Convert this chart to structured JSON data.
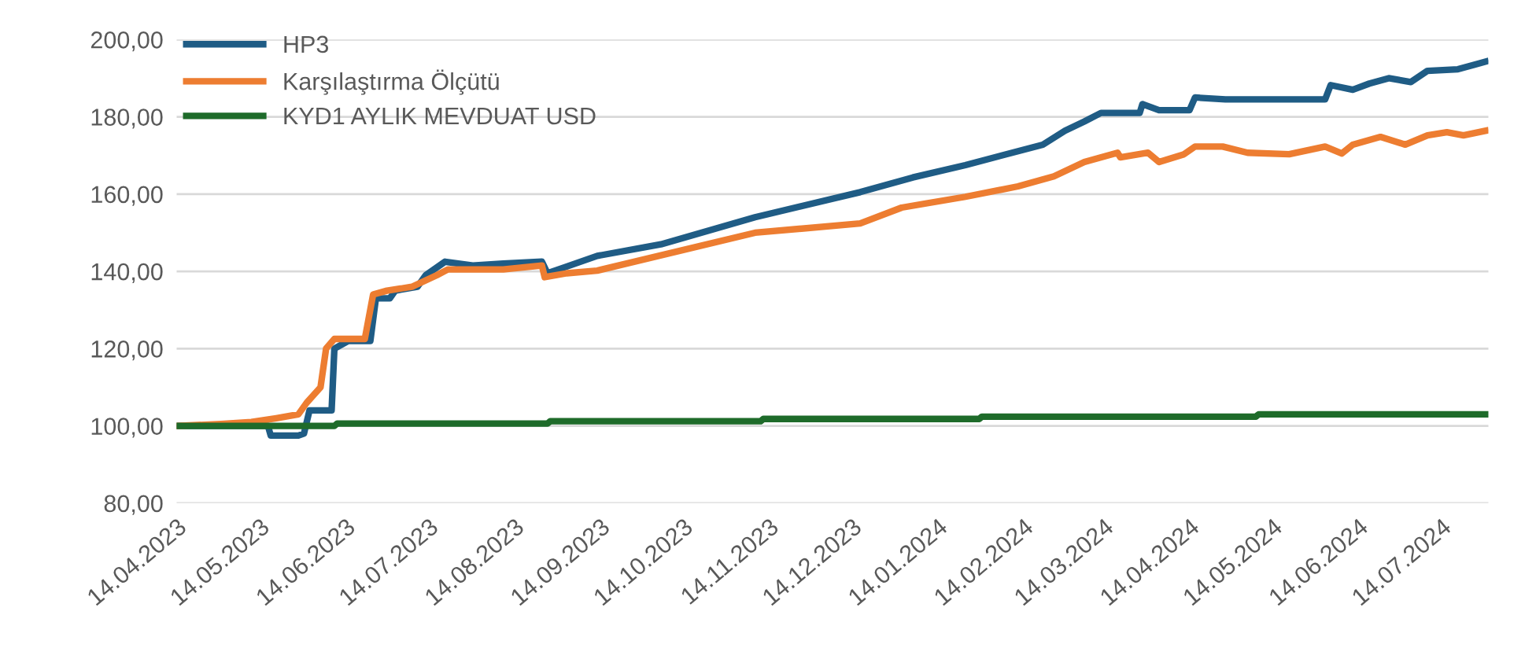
{
  "chart_data": {
    "type": "line",
    "legend": "top left",
    "grid": "y",
    "line_style": "solid",
    "marker": "none",
    "xlim": [
      "2023-04-14",
      "2024-07-31"
    ],
    "ylim": [
      80,
      200
    ],
    "yticks": [
      {
        "value": 80,
        "label": "80,00"
      },
      {
        "value": 100,
        "label": "100,00"
      },
      {
        "value": 120,
        "label": "120,00"
      },
      {
        "value": 140,
        "label": "140,00"
      },
      {
        "value": 160,
        "label": "160,00"
      },
      {
        "value": 180,
        "label": "180,00"
      },
      {
        "value": 200,
        "label": "200,00"
      }
    ],
    "xticks": [
      {
        "value": "2023-04-14",
        "label": "14.04.2023"
      },
      {
        "value": "2023-05-14",
        "label": "14.05.2023"
      },
      {
        "value": "2023-06-14",
        "label": "14.06.2023"
      },
      {
        "value": "2023-07-14",
        "label": "14.07.2023"
      },
      {
        "value": "2023-08-14",
        "label": "14.08.2023"
      },
      {
        "value": "2023-09-14",
        "label": "14.09.2023"
      },
      {
        "value": "2023-10-14",
        "label": "14.10.2023"
      },
      {
        "value": "2023-11-14",
        "label": "14.11.2023"
      },
      {
        "value": "2023-12-14",
        "label": "14.12.2023"
      },
      {
        "value": "2024-01-14",
        "label": "14.01.2024"
      },
      {
        "value": "2024-02-14",
        "label": "14.02.2024"
      },
      {
        "value": "2024-03-14",
        "label": "14.03.2024"
      },
      {
        "value": "2024-04-14",
        "label": "14.04.2024"
      },
      {
        "value": "2024-05-14",
        "label": "14.05.2024"
      },
      {
        "value": "2024-06-14",
        "label": "14.06.2024"
      },
      {
        "value": "2024-07-14",
        "label": "14.07.2024"
      }
    ],
    "series": [
      {
        "name": "HP3",
        "color": "#1f5c85",
        "x": [
          "2023-04-14",
          "2023-05-17",
          "2023-05-18",
          "2023-05-28",
          "2023-05-30",
          "2023-06-01",
          "2023-06-09",
          "2023-06-10",
          "2023-06-15",
          "2023-06-23",
          "2023-06-25",
          "2023-06-30",
          "2023-07-02",
          "2023-07-10",
          "2023-07-13",
          "2023-07-20",
          "2023-07-30",
          "2023-08-10",
          "2023-08-24",
          "2023-08-26",
          "2023-09-01",
          "2023-09-13",
          "2023-10-06",
          "2023-11-09",
          "2023-12-17",
          "2024-01-05",
          "2024-01-24",
          "2024-02-21",
          "2024-02-29",
          "2024-03-07",
          "2024-03-13",
          "2024-03-27",
          "2024-03-28",
          "2024-04-03",
          "2024-04-14",
          "2024-04-16",
          "2024-04-27",
          "2024-06-02",
          "2024-06-04",
          "2024-06-12",
          "2024-06-18",
          "2024-06-25",
          "2024-07-03",
          "2024-07-09",
          "2024-07-20",
          "2024-07-26",
          "2024-07-30"
        ],
        "values": [
          100,
          100,
          97.5,
          97.5,
          98,
          104,
          104,
          120,
          122,
          122,
          133,
          133,
          135,
          136,
          139,
          142.5,
          141.5,
          142,
          142.5,
          139.5,
          141,
          144,
          147,
          154,
          160.5,
          164.3,
          167.5,
          172.8,
          176.4,
          178.8,
          181,
          181,
          183.3,
          181.7,
          181.7,
          185,
          184.5,
          184.5,
          188.2,
          187,
          188.6,
          190,
          189,
          191.9,
          192.3,
          193.5,
          194.3
        ]
      },
      {
        "name": "Karşılaştırma Ölçütü",
        "color": "#ed7d31",
        "x": [
          "2023-04-14",
          "2023-04-30",
          "2023-05-11",
          "2023-05-20",
          "2023-05-28",
          "2023-05-31",
          "2023-06-05",
          "2023-06-07",
          "2023-06-10",
          "2023-06-21",
          "2023-06-24",
          "2023-06-29",
          "2023-07-08",
          "2023-07-17",
          "2023-07-21",
          "2023-08-10",
          "2023-08-24",
          "2023-08-25",
          "2023-09-02",
          "2023-09-13",
          "2023-11-09",
          "2023-12-17",
          "2024-01-01",
          "2024-01-24",
          "2024-02-12",
          "2024-02-25",
          "2024-03-07",
          "2024-03-19",
          "2024-03-20",
          "2024-03-30",
          "2024-04-03",
          "2024-04-12",
          "2024-04-16",
          "2024-04-26",
          "2024-05-05",
          "2024-05-20",
          "2024-06-02",
          "2024-06-08",
          "2024-06-12",
          "2024-06-22",
          "2024-07-01",
          "2024-07-09",
          "2024-07-16",
          "2024-07-22",
          "2024-07-30"
        ],
        "values": [
          100,
          100.5,
          101,
          102,
          103,
          106,
          110,
          120,
          122.5,
          122.5,
          134,
          135,
          136,
          139,
          140.5,
          140.5,
          141.5,
          138.5,
          139.5,
          140.2,
          150,
          152.4,
          156.5,
          159.3,
          162,
          164.6,
          168.3,
          170.7,
          169.5,
          170.7,
          168.3,
          170.3,
          172.3,
          172.3,
          170.7,
          170.3,
          172.3,
          170.5,
          172.8,
          174.8,
          172.8,
          175.2,
          176,
          175.2,
          176.4
        ]
      },
      {
        "name": "KYD1 AYLIK MEVDUAT USD",
        "color": "#1e6b2a",
        "x": [
          "2023-04-14",
          "2023-06-10",
          "2023-06-11",
          "2023-08-26",
          "2023-08-27",
          "2023-11-11",
          "2023-11-12",
          "2024-01-29",
          "2024-01-30",
          "2024-05-08",
          "2024-05-09",
          "2024-07-30"
        ],
        "values": [
          100,
          100,
          100.6,
          100.6,
          101.2,
          101.2,
          101.8,
          101.8,
          102.4,
          102.4,
          103,
          103
        ]
      }
    ]
  }
}
